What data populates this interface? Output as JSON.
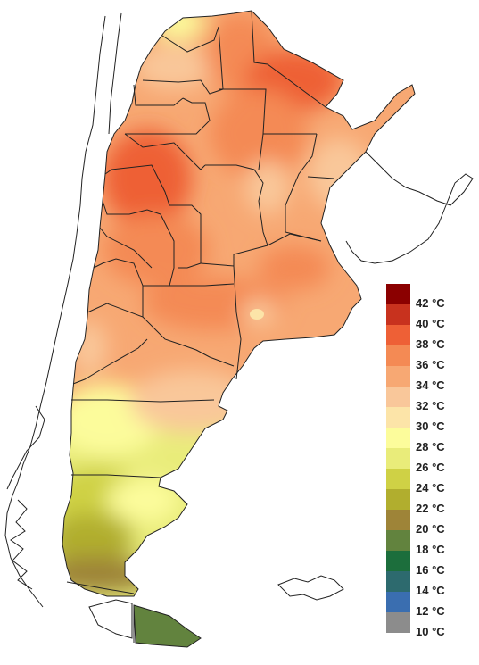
{
  "legend": {
    "items": [
      {
        "label": "42 °C",
        "color": "#8B0000"
      },
      {
        "label": "40 °C",
        "color": "#C8321E"
      },
      {
        "label": "38 °C",
        "color": "#EE6036"
      },
      {
        "label": "36 °C",
        "color": "#F48A54"
      },
      {
        "label": "34 °C",
        "color": "#F7A873"
      },
      {
        "label": "32 °C",
        "color": "#F9C79A"
      },
      {
        "label": "30 °C",
        "color": "#FCE4A8"
      },
      {
        "label": "28 °C",
        "color": "#FCFC9B"
      },
      {
        "label": "26 °C",
        "color": "#E9EC7A"
      },
      {
        "label": "24 °C",
        "color": "#CFD145"
      },
      {
        "label": "22 °C",
        "color": "#B1AE2E"
      },
      {
        "label": "20 °C",
        "color": "#9E8438"
      },
      {
        "label": "18 °C",
        "color": "#62833E"
      },
      {
        "label": "16 °C",
        "color": "#1C6E3C"
      },
      {
        "label": "14 °C",
        "color": "#2D6A6E"
      },
      {
        "label": "12 °C",
        "color": "#3A6EB0"
      },
      {
        "label": "10 °C",
        "color": "#8C8C8C"
      }
    ]
  }
}
